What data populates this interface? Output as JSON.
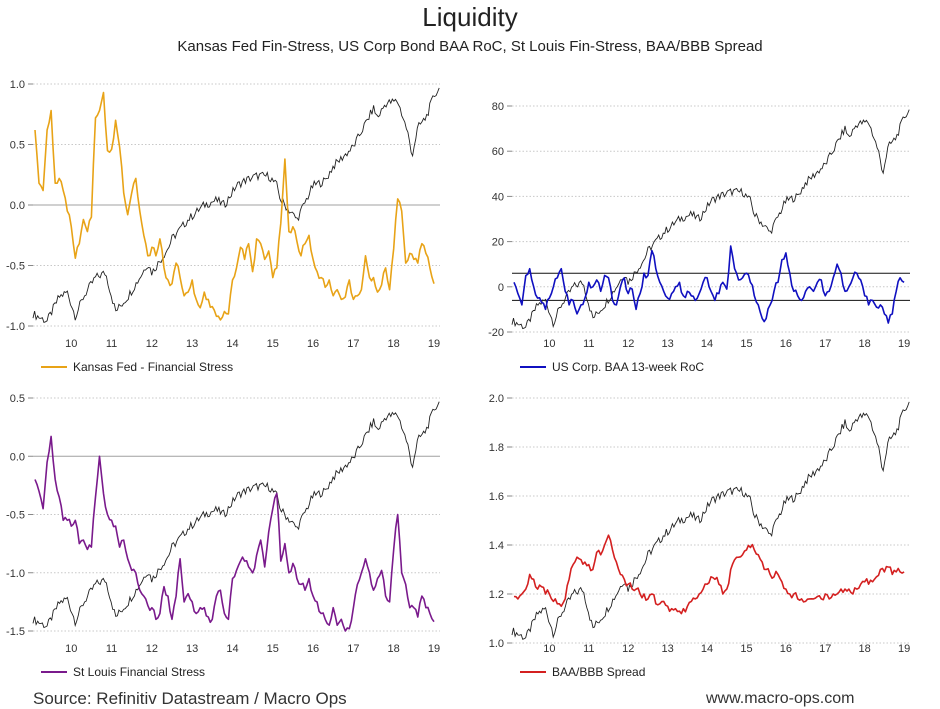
{
  "header": {
    "title": "Liquidity",
    "subtitle": "Kansas Fed Fin-Stress, US Corp Bond BAA RoC, St Louis Fin-Stress, BAA/BBB Spread"
  },
  "footer": {
    "source": "Source: Refinitiv Datastream / Macro Ops",
    "website": "www.macro-ops.com"
  },
  "colors": {
    "background": "#ffffff",
    "benchmark_line": "#222222",
    "kansas": "#e8a317",
    "baa_roc": "#1010c0",
    "stlouis": "#7a1a8c",
    "spread": "#d42020"
  },
  "chart_data": [
    {
      "id": "kansas",
      "type": "line",
      "legend": "Kansas Fed - Financial Stress",
      "color": "#e8a317",
      "x_ticks": [
        "10",
        "11",
        "12",
        "13",
        "14",
        "15",
        "16",
        "17",
        "18",
        "19"
      ],
      "x_domain": [
        2009.55,
        2019.65
      ],
      "ylim": [
        -1.0,
        1.0
      ],
      "y_ticks": [
        1.0,
        0.5,
        0.0,
        -0.5,
        -1.0
      ],
      "y_tick_labels": [
        "1.0",
        "0.5",
        "0.0",
        "-0.5",
        "-1.0"
      ],
      "zero_line": true,
      "x": [
        2009.6,
        2009.7,
        2009.8,
        2009.9,
        2010.0,
        2010.1,
        2010.2,
        2010.3,
        2010.4,
        2010.5,
        2010.6,
        2010.7,
        2010.8,
        2010.9,
        2011.0,
        2011.1,
        2011.2,
        2011.3,
        2011.4,
        2011.5,
        2011.6,
        2011.7,
        2011.8,
        2011.9,
        2012.0,
        2012.1,
        2012.2,
        2012.3,
        2012.4,
        2012.5,
        2012.6,
        2012.7,
        2012.8,
        2012.9,
        2013.0,
        2013.1,
        2013.2,
        2013.3,
        2013.4,
        2013.5,
        2013.6,
        2013.7,
        2013.8,
        2013.9,
        2014.0,
        2014.1,
        2014.2,
        2014.3,
        2014.4,
        2014.5,
        2014.6,
        2014.7,
        2014.8,
        2014.9,
        2015.0,
        2015.1,
        2015.2,
        2015.3,
        2015.4,
        2015.5,
        2015.6,
        2015.7,
        2015.8,
        2015.9,
        2016.0,
        2016.1,
        2016.2,
        2016.3,
        2016.4,
        2016.5,
        2016.6,
        2016.7,
        2016.8,
        2016.9,
        2017.0,
        2017.1,
        2017.2,
        2017.3,
        2017.4,
        2017.5,
        2017.6,
        2017.7,
        2017.8,
        2017.9,
        2018.0,
        2018.1,
        2018.2,
        2018.3,
        2018.4,
        2018.5,
        2018.6,
        2018.7,
        2018.8,
        2018.9,
        2019.0,
        2019.1,
        2019.2,
        2019.3,
        2019.4,
        2019.5
      ],
      "y": [
        0.62,
        0.18,
        0.12,
        0.62,
        0.78,
        0.18,
        0.22,
        0.12,
        -0.05,
        -0.18,
        -0.44,
        -0.32,
        -0.12,
        -0.22,
        -0.1,
        0.72,
        0.78,
        0.93,
        0.45,
        0.46,
        0.7,
        0.48,
        0.1,
        -0.08,
        0.1,
        0.22,
        -0.05,
        -0.25,
        -0.42,
        -0.35,
        -0.42,
        -0.28,
        -0.52,
        -0.62,
        -0.65,
        -0.48,
        -0.6,
        -0.75,
        -0.72,
        -0.62,
        -0.78,
        -0.85,
        -0.72,
        -0.78,
        -0.84,
        -0.92,
        -0.95,
        -0.88,
        -0.9,
        -0.62,
        -0.52,
        -0.35,
        -0.45,
        -0.32,
        -0.55,
        -0.28,
        -0.32,
        -0.45,
        -0.38,
        -0.6,
        -0.52,
        -0.15,
        0.38,
        -0.22,
        -0.18,
        -0.3,
        -0.42,
        -0.32,
        -0.25,
        -0.45,
        -0.55,
        -0.6,
        -0.68,
        -0.62,
        -0.75,
        -0.7,
        -0.78,
        -0.76,
        -0.62,
        -0.78,
        -0.75,
        -0.7,
        -0.42,
        -0.6,
        -0.6,
        -0.72,
        -0.66,
        -0.52,
        -0.7,
        -0.36,
        0.05,
        -0.05,
        -0.48,
        -0.4,
        -0.45,
        -0.48,
        -0.32,
        -0.4,
        -0.52,
        -0.65
      ],
      "overlay": "S&P 500 (unlabeled, black line)"
    },
    {
      "id": "baa_roc",
      "type": "line",
      "legend": "US Corp. BAA 13-week RoC",
      "color": "#1010c0",
      "x_ticks": [
        "10",
        "11",
        "12",
        "13",
        "14",
        "15",
        "16",
        "17",
        "18",
        "19"
      ],
      "x_domain": [
        2009.55,
        2019.65
      ],
      "ylim": [
        -20,
        80
      ],
      "y_ticks": [
        80,
        60,
        40,
        20,
        0,
        -20
      ],
      "y_tick_labels": [
        "80",
        "60",
        "40",
        "20",
        "0",
        "-20"
      ],
      "reference_lines": [
        6,
        -6
      ],
      "x": [
        2009.6,
        2009.7,
        2009.8,
        2009.9,
        2010.0,
        2010.1,
        2010.2,
        2010.3,
        2010.4,
        2010.5,
        2010.6,
        2010.7,
        2010.8,
        2010.9,
        2011.0,
        2011.1,
        2011.2,
        2011.3,
        2011.4,
        2011.5,
        2011.6,
        2011.7,
        2011.8,
        2011.9,
        2012.0,
        2012.1,
        2012.2,
        2012.3,
        2012.4,
        2012.5,
        2012.6,
        2012.7,
        2012.8,
        2012.9,
        2013.0,
        2013.1,
        2013.2,
        2013.3,
        2013.4,
        2013.5,
        2013.6,
        2013.7,
        2013.8,
        2013.9,
        2014.0,
        2014.1,
        2014.2,
        2014.3,
        2014.4,
        2014.5,
        2014.6,
        2014.7,
        2014.8,
        2014.9,
        2015.0,
        2015.1,
        2015.2,
        2015.3,
        2015.4,
        2015.5,
        2015.6,
        2015.7,
        2015.8,
        2015.9,
        2016.0,
        2016.1,
        2016.2,
        2016.3,
        2016.4,
        2016.5,
        2016.6,
        2016.7,
        2016.8,
        2016.9,
        2017.0,
        2017.1,
        2017.2,
        2017.3,
        2017.4,
        2017.5,
        2017.6,
        2017.7,
        2017.8,
        2017.9,
        2018.0,
        2018.1,
        2018.2,
        2018.3,
        2018.4,
        2018.5,
        2018.6,
        2018.7,
        2018.8,
        2018.9,
        2019.0,
        2019.1,
        2019.2,
        2019.3,
        2019.4,
        2019.5
      ],
      "y": [
        2,
        -3,
        -8,
        5,
        8,
        0,
        -5,
        -7,
        -10,
        -5,
        0,
        4,
        8,
        -2,
        -8,
        -6,
        -12,
        -8,
        -5,
        2,
        0,
        3,
        -2,
        5,
        4,
        -6,
        -8,
        0,
        4,
        -3,
        -1,
        -10,
        -3,
        6,
        5,
        16,
        8,
        2,
        -2,
        -5,
        -3,
        0,
        2,
        -4,
        -2,
        -4,
        -6,
        -3,
        2,
        4,
        -2,
        -6,
        -3,
        2,
        -1,
        18,
        8,
        3,
        4,
        6,
        2,
        -4,
        -8,
        -14,
        -14,
        -8,
        -2,
        2,
        12,
        15,
        6,
        -2,
        -4,
        -6,
        -2,
        0,
        -2,
        2,
        3,
        -4,
        -2,
        4,
        10,
        6,
        -2,
        0,
        4,
        6,
        3,
        -4,
        -8,
        -6,
        -9,
        -8,
        -12,
        -16,
        -12,
        -2,
        4,
        2
      ],
      "overlay": "S&P 500 (unlabeled, black line)"
    },
    {
      "id": "stlouis",
      "type": "line",
      "legend": "St Louis Financial Stress",
      "color": "#7a1a8c",
      "x_ticks": [
        "10",
        "11",
        "12",
        "13",
        "14",
        "15",
        "16",
        "17",
        "18",
        "19"
      ],
      "x_domain": [
        2009.55,
        2019.65
      ],
      "ylim": [
        -1.5,
        0.5
      ],
      "y_ticks": [
        0.5,
        0.0,
        -0.5,
        -1.0,
        -1.5
      ],
      "y_tick_labels": [
        "0.5",
        "0.0",
        "-0.5",
        "-1.0",
        "-1.5"
      ],
      "zero_line": true,
      "x": [
        2009.6,
        2009.7,
        2009.8,
        2009.9,
        2010.0,
        2010.1,
        2010.2,
        2010.3,
        2010.4,
        2010.5,
        2010.6,
        2010.7,
        2010.8,
        2010.9,
        2011.0,
        2011.1,
        2011.2,
        2011.3,
        2011.4,
        2011.5,
        2011.6,
        2011.7,
        2011.8,
        2011.9,
        2012.0,
        2012.1,
        2012.2,
        2012.3,
        2012.4,
        2012.5,
        2012.6,
        2012.7,
        2012.8,
        2012.9,
        2013.0,
        2013.1,
        2013.2,
        2013.3,
        2013.4,
        2013.5,
        2013.6,
        2013.7,
        2013.8,
        2013.9,
        2014.0,
        2014.1,
        2014.2,
        2014.3,
        2014.4,
        2014.5,
        2014.6,
        2014.7,
        2014.8,
        2014.9,
        2015.0,
        2015.1,
        2015.2,
        2015.3,
        2015.4,
        2015.5,
        2015.6,
        2015.7,
        2015.8,
        2015.9,
        2016.0,
        2016.1,
        2016.2,
        2016.3,
        2016.4,
        2016.5,
        2016.6,
        2016.7,
        2016.8,
        2016.9,
        2017.0,
        2017.1,
        2017.2,
        2017.3,
        2017.4,
        2017.5,
        2017.6,
        2017.7,
        2017.8,
        2017.9,
        2018.0,
        2018.1,
        2018.2,
        2018.3,
        2018.4,
        2018.5,
        2018.6,
        2018.7,
        2018.8,
        2018.9,
        2019.0,
        2019.1,
        2019.2,
        2019.3,
        2019.4,
        2019.5
      ],
      "y": [
        -0.2,
        -0.3,
        -0.45,
        -0.05,
        0.17,
        -0.2,
        -0.35,
        -0.55,
        -0.55,
        -0.6,
        -0.55,
        -0.75,
        -0.72,
        -0.8,
        -0.78,
        -0.35,
        0.0,
        -0.32,
        -0.5,
        -0.55,
        -0.6,
        -0.78,
        -0.72,
        -0.88,
        -0.98,
        -1.0,
        -1.15,
        -1.2,
        -1.28,
        -1.3,
        -1.4,
        -1.35,
        -1.12,
        -1.2,
        -1.4,
        -1.2,
        -0.88,
        -1.25,
        -1.18,
        -1.25,
        -1.35,
        -1.3,
        -1.3,
        -1.38,
        -1.4,
        -1.2,
        -1.15,
        -1.35,
        -1.4,
        -1.05,
        -0.98,
        -0.9,
        -0.9,
        -0.95,
        -1.0,
        -0.85,
        -0.72,
        -0.95,
        -0.65,
        -0.45,
        -0.32,
        -0.9,
        -0.75,
        -1.0,
        -0.92,
        -1.05,
        -1.1,
        -1.15,
        -1.05,
        -1.2,
        -1.25,
        -1.35,
        -1.4,
        -1.45,
        -1.3,
        -1.45,
        -1.4,
        -1.5,
        -1.48,
        -1.3,
        -1.1,
        -1.0,
        -0.88,
        -1.0,
        -1.15,
        -1.05,
        -0.98,
        -1.2,
        -1.25,
        -0.8,
        -0.5,
        -1.0,
        -1.1,
        -1.3,
        -1.3,
        -1.38,
        -1.2,
        -1.3,
        -1.35,
        -1.42
      ],
      "overlay": "S&P 500 (unlabeled, black line)"
    },
    {
      "id": "spread",
      "type": "line",
      "legend": "BAA/BBB Spread",
      "color": "#d42020",
      "x_ticks": [
        "10",
        "11",
        "12",
        "13",
        "14",
        "15",
        "16",
        "17",
        "18",
        "19"
      ],
      "x_domain": [
        2009.55,
        2019.65
      ],
      "ylim": [
        1.0,
        2.0
      ],
      "y_ticks": [
        2.0,
        1.8,
        1.6,
        1.4,
        1.2,
        1.0
      ],
      "y_tick_labels": [
        "2.0",
        "1.8",
        "1.6",
        "1.4",
        "1.2",
        "1.0"
      ],
      "x": [
        2009.6,
        2009.7,
        2009.8,
        2009.9,
        2010.0,
        2010.1,
        2010.2,
        2010.3,
        2010.4,
        2010.5,
        2010.6,
        2010.7,
        2010.8,
        2010.9,
        2011.0,
        2011.1,
        2011.2,
        2011.3,
        2011.4,
        2011.5,
        2011.6,
        2011.7,
        2011.8,
        2011.9,
        2012.0,
        2012.1,
        2012.2,
        2012.3,
        2012.4,
        2012.5,
        2012.6,
        2012.7,
        2012.8,
        2012.9,
        2013.0,
        2013.1,
        2013.2,
        2013.3,
        2013.4,
        2013.5,
        2013.6,
        2013.7,
        2013.8,
        2013.9,
        2014.0,
        2014.1,
        2014.2,
        2014.3,
        2014.4,
        2014.5,
        2014.6,
        2014.7,
        2014.8,
        2014.9,
        2015.0,
        2015.1,
        2015.2,
        2015.3,
        2015.4,
        2015.5,
        2015.6,
        2015.7,
        2015.8,
        2015.9,
        2016.0,
        2016.1,
        2016.2,
        2016.3,
        2016.4,
        2016.5,
        2016.6,
        2016.7,
        2016.8,
        2016.9,
        2017.0,
        2017.1,
        2017.2,
        2017.3,
        2017.4,
        2017.5,
        2017.6,
        2017.7,
        2017.8,
        2017.9,
        2018.0,
        2018.1,
        2018.2,
        2018.3,
        2018.4,
        2018.5,
        2018.6,
        2018.7,
        2018.8,
        2018.9,
        2019.0,
        2019.1,
        2019.2,
        2019.3,
        2019.4,
        2019.5
      ],
      "y": [
        1.19,
        1.18,
        1.2,
        1.22,
        1.28,
        1.26,
        1.22,
        1.23,
        1.2,
        1.2,
        1.17,
        1.16,
        1.15,
        1.18,
        1.26,
        1.32,
        1.35,
        1.34,
        1.33,
        1.32,
        1.3,
        1.37,
        1.36,
        1.4,
        1.44,
        1.38,
        1.33,
        1.28,
        1.26,
        1.24,
        1.22,
        1.22,
        1.2,
        1.2,
        1.18,
        1.2,
        1.16,
        1.16,
        1.17,
        1.15,
        1.14,
        1.14,
        1.13,
        1.14,
        1.15,
        1.17,
        1.18,
        1.2,
        1.22,
        1.24,
        1.27,
        1.26,
        1.24,
        1.2,
        1.22,
        1.3,
        1.34,
        1.35,
        1.36,
        1.38,
        1.39,
        1.38,
        1.36,
        1.33,
        1.3,
        1.28,
        1.27,
        1.28,
        1.25,
        1.22,
        1.2,
        1.2,
        1.18,
        1.18,
        1.17,
        1.18,
        1.18,
        1.19,
        1.18,
        1.2,
        1.18,
        1.2,
        1.2,
        1.22,
        1.22,
        1.22,
        1.2,
        1.22,
        1.24,
        1.25,
        1.24,
        1.25,
        1.27,
        1.3,
        1.29,
        1.31,
        1.28,
        1.29,
        1.29,
        1.29
      ],
      "overlay": "S&P 500 (unlabeled, black line)"
    }
  ]
}
